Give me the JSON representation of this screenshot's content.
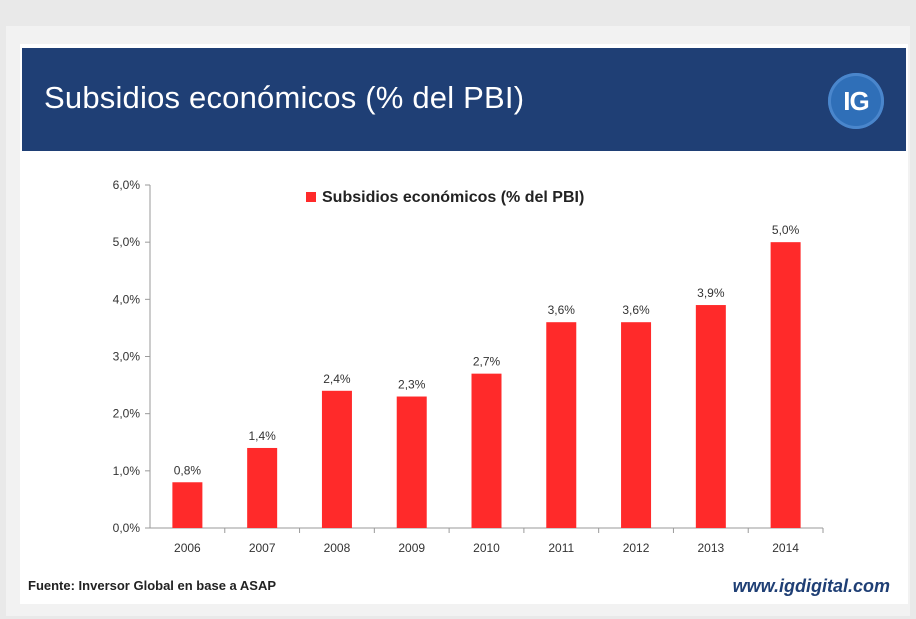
{
  "header": {
    "title": "Subsidios económicos (% del PBI)",
    "logo_text": "IG"
  },
  "footer": {
    "source": "Fuente: Inversor Global en base a ASAP",
    "website": "www.igdigital.com"
  },
  "colors": {
    "header_bg": "#1f3f75",
    "bar": "#ff2a2a",
    "logo_bg": "#2f6fb8"
  },
  "chart_data": {
    "type": "bar",
    "categories": [
      "2006",
      "2007",
      "2008",
      "2009",
      "2010",
      "2011",
      "2012",
      "2013",
      "2014"
    ],
    "series": [
      {
        "name": "Subsidios económicos (% del PBI)",
        "values": [
          0.8,
          1.4,
          2.4,
          2.3,
          2.7,
          3.6,
          3.6,
          3.9,
          5.0
        ],
        "labels": [
          "0,8%",
          "1,4%",
          "2,4%",
          "2,3%",
          "2,7%",
          "3,6%",
          "3,6%",
          "3,9%",
          "5,0%"
        ]
      }
    ],
    "yticks": [
      "0,0%",
      "1,0%",
      "2,0%",
      "3,0%",
      "4,0%",
      "5,0%",
      "6,0%"
    ],
    "ylim": [
      0,
      6
    ],
    "grid": false,
    "legend": "top-center"
  }
}
